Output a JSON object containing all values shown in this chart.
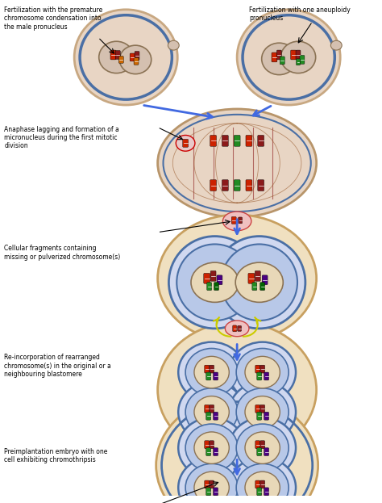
{
  "bg_color": "#ffffff",
  "cell_outer_color": "#e8d5c4",
  "cell_border_color": "#c8a882",
  "nucleus_color": "#d4c0b0",
  "nucleus_border_color": "#8B7355",
  "inner_ring_color": "#4a6fa5",
  "chr_red": "#cc2200",
  "chr_dark_red": "#8B1a1a",
  "chr_green": "#228B22",
  "chr_dark_green": "#006400",
  "chr_purple": "#4B0082",
  "chr_dark_purple": "#2d004d",
  "arrow_color": "#4169E1",
  "text_color": "#000000",
  "label1": "Fertilization with the premature\nchromosome condensation into\nthe male pronucleus",
  "label2": "Fertilization with one aneuploidy\npronucleus",
  "label3": "Anaphase lagging and formation of a\nmicronucleus during the first mitotic\ndivision",
  "label4": "Cellular fragments containing\nmissing or pulverized chromosome(s)",
  "label5": "Re-incorporation of rearranged\nchromosome(s) in the original or a\nneighbouring blastomere",
  "label6": "Preimplantation embryo with one\ncell exhibiting chromothripsis"
}
